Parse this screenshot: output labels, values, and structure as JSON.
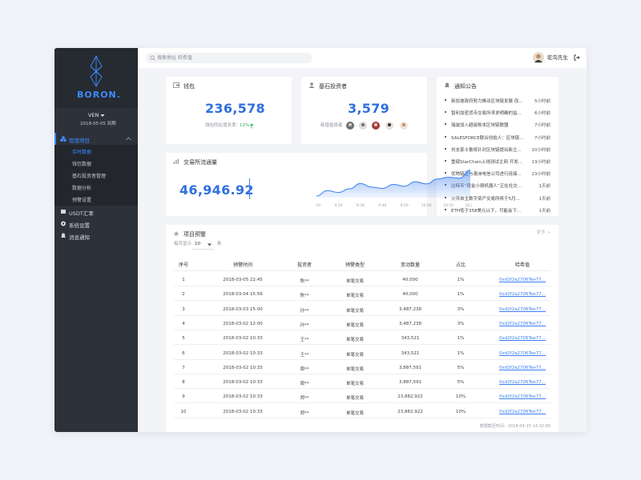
{
  "header": {
    "search_placeholder": "搜索地址 哈希值",
    "user_name": "鸵鸟先生"
  },
  "sidebar": {
    "brand": "BORON.",
    "account": "VEN",
    "expiry": "2018-05-05 到期",
    "menu": [
      {
        "label": "管理项目",
        "children": [
          "实时数据",
          "钱包数据",
          "基石投资者管理",
          "数据分析",
          "预警设置"
        ]
      },
      {
        "label": "USDT汇率"
      },
      {
        "label": "系统设置"
      },
      {
        "label": "消息通知"
      }
    ]
  },
  "wallet": {
    "title": "钱包",
    "value": "236,578",
    "growth_label": "钱包同比增长率：",
    "growth_value": "12%"
  },
  "investors": {
    "title": "基石投资者",
    "value": "3,579",
    "new_label": "新增投资者"
  },
  "notices": {
    "title": "通知公告",
    "items": [
      {
        "text": "新加坡政府努力推动区块链发展 改...",
        "time": "5小时前"
      },
      {
        "text": "智利加密货币交易所寻求明确的监...",
        "time": "6小时前"
      },
      {
        "text": "瑞波加入超级账本区块链联盟",
        "time": "7小时前"
      },
      {
        "text": "SALESFORCE联合创始人：区块链...",
        "time": "7小时前"
      },
      {
        "text": "刘支家士鲁将针对区块链提出新立...",
        "time": "10小时前"
      },
      {
        "text": "重磅StarChain上线测试主网 开发...",
        "time": "13小时前"
      },
      {
        "text": "优物链正与澳洲电信公司进行连接...",
        "time": "23小时前"
      },
      {
        "text": "比特币“现金小费机器人”正在社交...",
        "time": "1天前"
      },
      {
        "text": "火币自主数字资产交易所将于5月...",
        "time": "1天前"
      },
      {
        "text": "ETH低于358美元以下，可能会下...",
        "time": "1天前"
      }
    ]
  },
  "exchange": {
    "title": "交易所流通量",
    "value": "46,946.92"
  },
  "chart_data": {
    "type": "area",
    "categories": [
      "9:10",
      null,
      "9:20",
      null,
      "9:30",
      null,
      "9:40",
      null,
      "9:50",
      null,
      "10:00",
      null,
      "10:10",
      null,
      "10:20"
    ],
    "values": [
      30,
      42,
      38,
      46,
      58,
      50,
      47,
      56,
      52,
      62,
      57,
      68,
      72,
      70,
      88
    ],
    "color": "#3b7ff0"
  },
  "alerts": {
    "title": "项目预警",
    "more": "更多 >",
    "page_size_label": "每页显示",
    "page_size": "10",
    "page_size_unit": "条",
    "columns": [
      "序号",
      "预警时间",
      "投资者",
      "预警类型",
      "变动数量",
      "占比",
      "哈希值"
    ],
    "rows": [
      [
        "1",
        "2018-03-05 22:45",
        "陈**",
        "单笔交易",
        "40,000",
        "1%",
        "0xd2f2a2706Tee77..."
      ],
      [
        "2",
        "2018-03-04 15:56",
        "陈**",
        "单笔交易",
        "40,000",
        "1%",
        "0xd2f2a2706Tee77..."
      ],
      [
        "3",
        "2018-03-03 15:00",
        "孙**",
        "单笔交易",
        "3,487,238",
        "3%",
        "0xd2f2a2706Tee77..."
      ],
      [
        "4",
        "2018-03-02 12:00",
        "孙**",
        "单笔交易",
        "3,487,238",
        "3%",
        "0xd2f2a2706Tee77..."
      ],
      [
        "5",
        "2018-03-02 10:33",
        "王**",
        "单笔交易",
        "343,521",
        "1%",
        "0xd2f2a2706Tee77..."
      ],
      [
        "6",
        "2018-03-02 10:33",
        "王**",
        "单笔交易",
        "343,521",
        "1%",
        "0xd2f2a2706Tee77..."
      ],
      [
        "7",
        "2018-03-02 10:33",
        "周**",
        "单笔交易",
        "3,887,591",
        "5%",
        "0xd2f2a2706Tee77..."
      ],
      [
        "8",
        "2018-03-02 10:33",
        "周**",
        "单笔交易",
        "3,887,591",
        "5%",
        "0xd2f2a2706Tee77..."
      ],
      [
        "9",
        "2018-03-02 10:33",
        "郑**",
        "单笔交易",
        "23,882,922",
        "10%",
        "0xd2f2a2706Tee77..."
      ],
      [
        "10",
        "2018-03-02 10:33",
        "郑**",
        "单笔交易",
        "23,882,922",
        "10%",
        "0xd2f2a2706Tee77..."
      ]
    ],
    "footer": "数据截至时间：2018-04-15 14:32:56"
  }
}
